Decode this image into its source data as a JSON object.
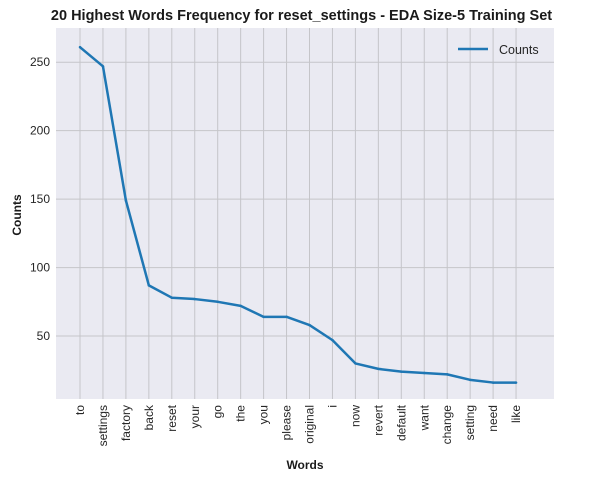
{
  "chart_data": {
    "type": "line",
    "title": "20 Highest Words Frequency for reset_settings - EDA Size-5 Training Set",
    "xlabel": "Words",
    "ylabel": "Counts",
    "categories": [
      "to",
      "settings",
      "factory",
      "back",
      "reset",
      "your",
      "go",
      "the",
      "you",
      "please",
      "original",
      "i",
      "now",
      "revert",
      "default",
      "want",
      "change",
      "setting",
      "need",
      "like"
    ],
    "series": [
      {
        "name": "Counts",
        "values": [
          261,
          247,
          149,
          87,
          78,
          77,
          75,
          72,
          64,
          64,
          58,
          47,
          30,
          26,
          24,
          23,
          22,
          18,
          16,
          16
        ]
      }
    ],
    "ylim": [
      4,
      275
    ],
    "yticks": [
      50,
      100,
      150,
      200,
      250
    ],
    "grid": true,
    "legend_position": "top-right",
    "colors": {
      "line": "#1f77b4",
      "plot_background": "#eaeaf2",
      "grid": "#c5c5c9"
    }
  }
}
